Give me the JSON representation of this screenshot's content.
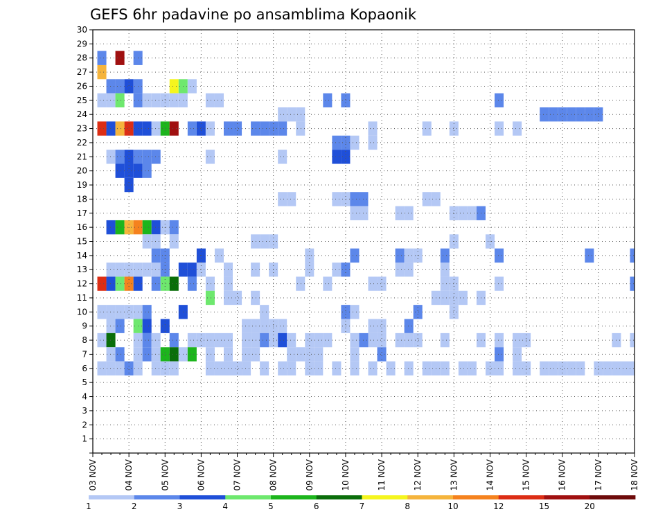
{
  "chart_data": {
    "type": "heatmap",
    "title": "GEFS 6hr padavine po ansamblima Kopaonik",
    "x_tick_labels": [
      "03 NOV",
      "04 NOV",
      "05 NOV",
      "06 NOV",
      "07 NOV",
      "08 NOV",
      "09 NOV",
      "10 NOV",
      "11 NOV",
      "12 NOV",
      "13 NOV",
      "14 NOV",
      "15 NOV",
      "16 NOV",
      "17 NOV",
      "18 NOV"
    ],
    "y_tick_labels": [
      "1",
      "2",
      "3",
      "4",
      "5",
      "6",
      "7",
      "8",
      "9",
      "10",
      "11",
      "12",
      "13",
      "14",
      "15",
      "16",
      "17",
      "18",
      "19",
      "20",
      "21",
      "22",
      "23",
      "24",
      "25",
      "26",
      "27",
      "28",
      "29",
      "30"
    ],
    "xlim_steps": [
      0,
      60
    ],
    "ylim": [
      0,
      30
    ],
    "grid": "dotted",
    "legend": "bottom colorbar",
    "levels": [
      "1",
      "2",
      "3",
      "4",
      "5",
      "6",
      "7",
      "8",
      "10",
      "12",
      "15",
      "20"
    ],
    "colors": [
      "#b4c8f5",
      "#5c87ea",
      "#1f4fd8",
      "#6ee86e",
      "#1cb51c",
      "#0a6e0a",
      "#f5f51e",
      "#f5b43c",
      "#f5821e",
      "#dc2d14",
      "#a01010",
      "#6e0a0a"
    ],
    "cells": [
      [
        27,
        1,
        7
      ],
      [
        28,
        1,
        1
      ],
      [
        28,
        3,
        10
      ],
      [
        28,
        5,
        1
      ],
      [
        26,
        2,
        1
      ],
      [
        26,
        3,
        1
      ],
      [
        26,
        4,
        2
      ],
      [
        26,
        5,
        1
      ],
      [
        26,
        9,
        6
      ],
      [
        26,
        10,
        3
      ],
      [
        26,
        11,
        0
      ],
      [
        25,
        1,
        0
      ],
      [
        25,
        2,
        0
      ],
      [
        25,
        3,
        3
      ],
      [
        25,
        5,
        1
      ],
      [
        25,
        6,
        0
      ],
      [
        25,
        7,
        0
      ],
      [
        25,
        8,
        0
      ],
      [
        25,
        9,
        0
      ],
      [
        25,
        10,
        0
      ],
      [
        25,
        13,
        0
      ],
      [
        25,
        14,
        0
      ],
      [
        25,
        26,
        1
      ],
      [
        25,
        28,
        1
      ],
      [
        25,
        45,
        1
      ],
      [
        24,
        21,
        0
      ],
      [
        24,
        22,
        0
      ],
      [
        24,
        23,
        0
      ],
      [
        24,
        50,
        1
      ],
      [
        24,
        51,
        1
      ],
      [
        24,
        52,
        1
      ],
      [
        24,
        53,
        1
      ],
      [
        24,
        54,
        1
      ],
      [
        24,
        55,
        1
      ],
      [
        24,
        56,
        1
      ],
      [
        23,
        1,
        9
      ],
      [
        23,
        2,
        2
      ],
      [
        23,
        3,
        7
      ],
      [
        23,
        4,
        9
      ],
      [
        23,
        5,
        2
      ],
      [
        23,
        6,
        2
      ],
      [
        23,
        7,
        0
      ],
      [
        23,
        8,
        4
      ],
      [
        23,
        9,
        10
      ],
      [
        23,
        11,
        1
      ],
      [
        23,
        12,
        2
      ],
      [
        23,
        13,
        0
      ],
      [
        23,
        15,
        1
      ],
      [
        23,
        16,
        1
      ],
      [
        23,
        18,
        1
      ],
      [
        23,
        19,
        1
      ],
      [
        23,
        20,
        1
      ],
      [
        23,
        21,
        1
      ],
      [
        23,
        23,
        0
      ],
      [
        23,
        31,
        0
      ],
      [
        23,
        37,
        0
      ],
      [
        23,
        40,
        0
      ],
      [
        23,
        45,
        0
      ],
      [
        23,
        47,
        0
      ],
      [
        22,
        27,
        1
      ],
      [
        22,
        28,
        1
      ],
      [
        22,
        29,
        0
      ],
      [
        22,
        31,
        0
      ],
      [
        21,
        2,
        0
      ],
      [
        21,
        3,
        1
      ],
      [
        21,
        4,
        2
      ],
      [
        21,
        5,
        1
      ],
      [
        21,
        6,
        1
      ],
      [
        21,
        7,
        1
      ],
      [
        21,
        13,
        0
      ],
      [
        21,
        21,
        0
      ],
      [
        21,
        27,
        2
      ],
      [
        21,
        28,
        2
      ],
      [
        20,
        3,
        2
      ],
      [
        20,
        4,
        2
      ],
      [
        20,
        5,
        2
      ],
      [
        20,
        6,
        1
      ],
      [
        19,
        4,
        2
      ],
      [
        18,
        21,
        0
      ],
      [
        18,
        22,
        0
      ],
      [
        18,
        27,
        0
      ],
      [
        18,
        28,
        0
      ],
      [
        18,
        29,
        1
      ],
      [
        18,
        30,
        1
      ],
      [
        18,
        37,
        0
      ],
      [
        18,
        38,
        0
      ],
      [
        17,
        29,
        0
      ],
      [
        17,
        30,
        0
      ],
      [
        17,
        34,
        0
      ],
      [
        17,
        35,
        0
      ],
      [
        17,
        40,
        0
      ],
      [
        17,
        41,
        0
      ],
      [
        17,
        42,
        0
      ],
      [
        17,
        43,
        1
      ],
      [
        16,
        2,
        2
      ],
      [
        16,
        3,
        4
      ],
      [
        16,
        4,
        7
      ],
      [
        16,
        5,
        8
      ],
      [
        16,
        6,
        4
      ],
      [
        16,
        7,
        2
      ],
      [
        16,
        8,
        0
      ],
      [
        16,
        9,
        1
      ],
      [
        15,
        6,
        0
      ],
      [
        15,
        7,
        0
      ],
      [
        15,
        9,
        0
      ],
      [
        15,
        18,
        0
      ],
      [
        15,
        19,
        0
      ],
      [
        15,
        20,
        0
      ],
      [
        15,
        40,
        0
      ],
      [
        15,
        44,
        0
      ],
      [
        14,
        7,
        1
      ],
      [
        14,
        8,
        1
      ],
      [
        14,
        12,
        2
      ],
      [
        14,
        14,
        0
      ],
      [
        14,
        24,
        0
      ],
      [
        14,
        29,
        1
      ],
      [
        14,
        34,
        1
      ],
      [
        14,
        35,
        0
      ],
      [
        14,
        36,
        0
      ],
      [
        14,
        39,
        1
      ],
      [
        14,
        45,
        1
      ],
      [
        14,
        55,
        1
      ],
      [
        14,
        60,
        1
      ],
      [
        13,
        2,
        0
      ],
      [
        13,
        3,
        0
      ],
      [
        13,
        4,
        0
      ],
      [
        13,
        5,
        0
      ],
      [
        13,
        6,
        0
      ],
      [
        13,
        7,
        0
      ],
      [
        13,
        8,
        1
      ],
      [
        13,
        10,
        2
      ],
      [
        13,
        11,
        2
      ],
      [
        13,
        12,
        0
      ],
      [
        13,
        15,
        0
      ],
      [
        13,
        18,
        0
      ],
      [
        13,
        20,
        0
      ],
      [
        13,
        24,
        0
      ],
      [
        13,
        27,
        0
      ],
      [
        13,
        28,
        1
      ],
      [
        13,
        34,
        0
      ],
      [
        13,
        35,
        0
      ],
      [
        13,
        39,
        0
      ],
      [
        12,
        1,
        9
      ],
      [
        12,
        2,
        2
      ],
      [
        12,
        3,
        3
      ],
      [
        12,
        4,
        8
      ],
      [
        12,
        5,
        2
      ],
      [
        12,
        7,
        1
      ],
      [
        12,
        8,
        3
      ],
      [
        12,
        9,
        5
      ],
      [
        12,
        11,
        1
      ],
      [
        12,
        13,
        0
      ],
      [
        12,
        15,
        0
      ],
      [
        12,
        23,
        0
      ],
      [
        12,
        26,
        0
      ],
      [
        12,
        31,
        0
      ],
      [
        12,
        32,
        0
      ],
      [
        12,
        39,
        0
      ],
      [
        12,
        40,
        0
      ],
      [
        12,
        45,
        0
      ],
      [
        12,
        60,
        1
      ],
      [
        11,
        13,
        3
      ],
      [
        11,
        15,
        0
      ],
      [
        11,
        16,
        0
      ],
      [
        11,
        18,
        0
      ],
      [
        11,
        38,
        0
      ],
      [
        11,
        39,
        0
      ],
      [
        11,
        40,
        0
      ],
      [
        11,
        41,
        0
      ],
      [
        11,
        43,
        0
      ],
      [
        10,
        1,
        0
      ],
      [
        10,
        2,
        0
      ],
      [
        10,
        3,
        0
      ],
      [
        10,
        4,
        0
      ],
      [
        10,
        5,
        0
      ],
      [
        10,
        6,
        1
      ],
      [
        10,
        10,
        2
      ],
      [
        10,
        19,
        0
      ],
      [
        10,
        28,
        1
      ],
      [
        10,
        29,
        0
      ],
      [
        10,
        36,
        1
      ],
      [
        10,
        40,
        0
      ],
      [
        9,
        2,
        0
      ],
      [
        9,
        3,
        1
      ],
      [
        9,
        5,
        3
      ],
      [
        9,
        6,
        2
      ],
      [
        9,
        8,
        2
      ],
      [
        9,
        17,
        0
      ],
      [
        9,
        18,
        0
      ],
      [
        9,
        19,
        0
      ],
      [
        9,
        20,
        0
      ],
      [
        9,
        21,
        0
      ],
      [
        9,
        28,
        0
      ],
      [
        9,
        31,
        0
      ],
      [
        9,
        32,
        0
      ],
      [
        9,
        35,
        1
      ],
      [
        8,
        1,
        0
      ],
      [
        8,
        2,
        5
      ],
      [
        8,
        5,
        0
      ],
      [
        8,
        6,
        1
      ],
      [
        8,
        7,
        0
      ],
      [
        8,
        9,
        1
      ],
      [
        8,
        11,
        0
      ],
      [
        8,
        12,
        0
      ],
      [
        8,
        13,
        0
      ],
      [
        8,
        14,
        0
      ],
      [
        8,
        15,
        0
      ],
      [
        8,
        17,
        0
      ],
      [
        8,
        18,
        0
      ],
      [
        8,
        19,
        1
      ],
      [
        8,
        20,
        0
      ],
      [
        8,
        21,
        2
      ],
      [
        8,
        22,
        0
      ],
      [
        8,
        24,
        0
      ],
      [
        8,
        25,
        0
      ],
      [
        8,
        26,
        0
      ],
      [
        8,
        29,
        0
      ],
      [
        8,
        30,
        1
      ],
      [
        8,
        31,
        0
      ],
      [
        8,
        32,
        0
      ],
      [
        8,
        34,
        0
      ],
      [
        8,
        35,
        0
      ],
      [
        8,
        36,
        0
      ],
      [
        8,
        39,
        0
      ],
      [
        8,
        43,
        0
      ],
      [
        8,
        45,
        0
      ],
      [
        8,
        47,
        0
      ],
      [
        8,
        48,
        0
      ],
      [
        8,
        58,
        0
      ],
      [
        8,
        60,
        0
      ],
      [
        7,
        2,
        0
      ],
      [
        7,
        3,
        1
      ],
      [
        7,
        5,
        0
      ],
      [
        7,
        6,
        1
      ],
      [
        7,
        7,
        0
      ],
      [
        7,
        8,
        4
      ],
      [
        7,
        9,
        5
      ],
      [
        7,
        10,
        0
      ],
      [
        7,
        11,
        4
      ],
      [
        7,
        13,
        0
      ],
      [
        7,
        15,
        0
      ],
      [
        7,
        17,
        0
      ],
      [
        7,
        18,
        0
      ],
      [
        7,
        22,
        0
      ],
      [
        7,
        23,
        0
      ],
      [
        7,
        24,
        0
      ],
      [
        7,
        25,
        0
      ],
      [
        7,
        29,
        0
      ],
      [
        7,
        32,
        1
      ],
      [
        7,
        45,
        1
      ],
      [
        7,
        47,
        0
      ],
      [
        6,
        1,
        0
      ],
      [
        6,
        2,
        0
      ],
      [
        6,
        3,
        0
      ],
      [
        6,
        4,
        1
      ],
      [
        6,
        5,
        0
      ],
      [
        6,
        7,
        0
      ],
      [
        6,
        8,
        0
      ],
      [
        6,
        9,
        0
      ],
      [
        6,
        13,
        0
      ],
      [
        6,
        14,
        0
      ],
      [
        6,
        15,
        0
      ],
      [
        6,
        16,
        0
      ],
      [
        6,
        17,
        0
      ],
      [
        6,
        19,
        0
      ],
      [
        6,
        21,
        0
      ],
      [
        6,
        22,
        0
      ],
      [
        6,
        24,
        0
      ],
      [
        6,
        25,
        0
      ],
      [
        6,
        27,
        0
      ],
      [
        6,
        29,
        0
      ],
      [
        6,
        31,
        0
      ],
      [
        6,
        33,
        0
      ],
      [
        6,
        35,
        0
      ],
      [
        6,
        37,
        0
      ],
      [
        6,
        38,
        0
      ],
      [
        6,
        39,
        0
      ],
      [
        6,
        41,
        0
      ],
      [
        6,
        42,
        0
      ],
      [
        6,
        44,
        0
      ],
      [
        6,
        45,
        0
      ],
      [
        6,
        47,
        0
      ],
      [
        6,
        48,
        0
      ],
      [
        6,
        50,
        0
      ],
      [
        6,
        51,
        0
      ],
      [
        6,
        52,
        0
      ],
      [
        6,
        53,
        0
      ],
      [
        6,
        54,
        0
      ],
      [
        6,
        56,
        0
      ],
      [
        6,
        57,
        0
      ],
      [
        6,
        58,
        0
      ],
      [
        6,
        59,
        0
      ],
      [
        6,
        60,
        0
      ]
    ]
  }
}
